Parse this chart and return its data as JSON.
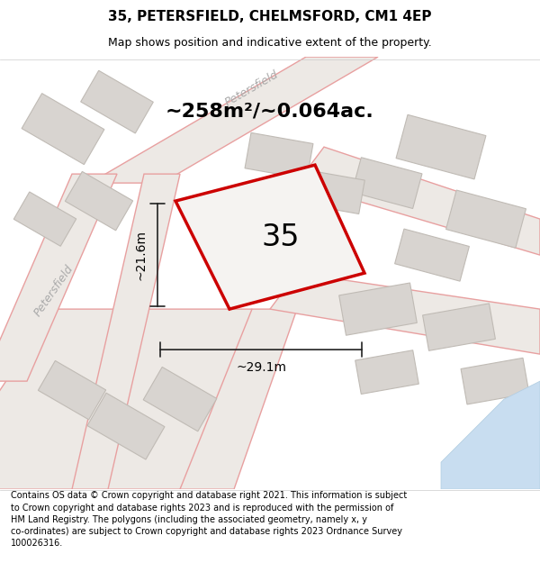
{
  "title": "35, PETERSFIELD, CHELMSFORD, CM1 4EP",
  "subtitle": "Map shows position and indicative extent of the property.",
  "area_text": "~258m²/~0.064ac.",
  "dim_width": "~29.1m",
  "dim_height": "~21.6m",
  "plot_label": "35",
  "footer_lines": [
    "Contains OS data © Crown copyright and database right 2021. This information is subject",
    "to Crown copyright and database rights 2023 and is reproduced with the permission of",
    "HM Land Registry. The polygons (including the associated geometry, namely x, y",
    "co-ordinates) are subject to Crown copyright and database rights 2023 Ordnance Survey",
    "100026316."
  ],
  "bg_color": "#f2f0ee",
  "road_fill": "#ede9e5",
  "road_stroke": "#e8a0a0",
  "building_fill": "#d8d4d0",
  "building_stroke": "#c0bbb5",
  "property_stroke": "#cc0000",
  "property_fill": "#f5f3f1",
  "water_color": "#c8ddf0",
  "water_stroke": "#b0cce0",
  "dim_line_color": "#222222",
  "street_label_color": "#aaaaaa",
  "title_fontsize": 11,
  "subtitle_fontsize": 9,
  "area_fontsize": 16,
  "plot_label_fontsize": 24,
  "dim_fontsize": 10,
  "footer_fontsize": 7
}
